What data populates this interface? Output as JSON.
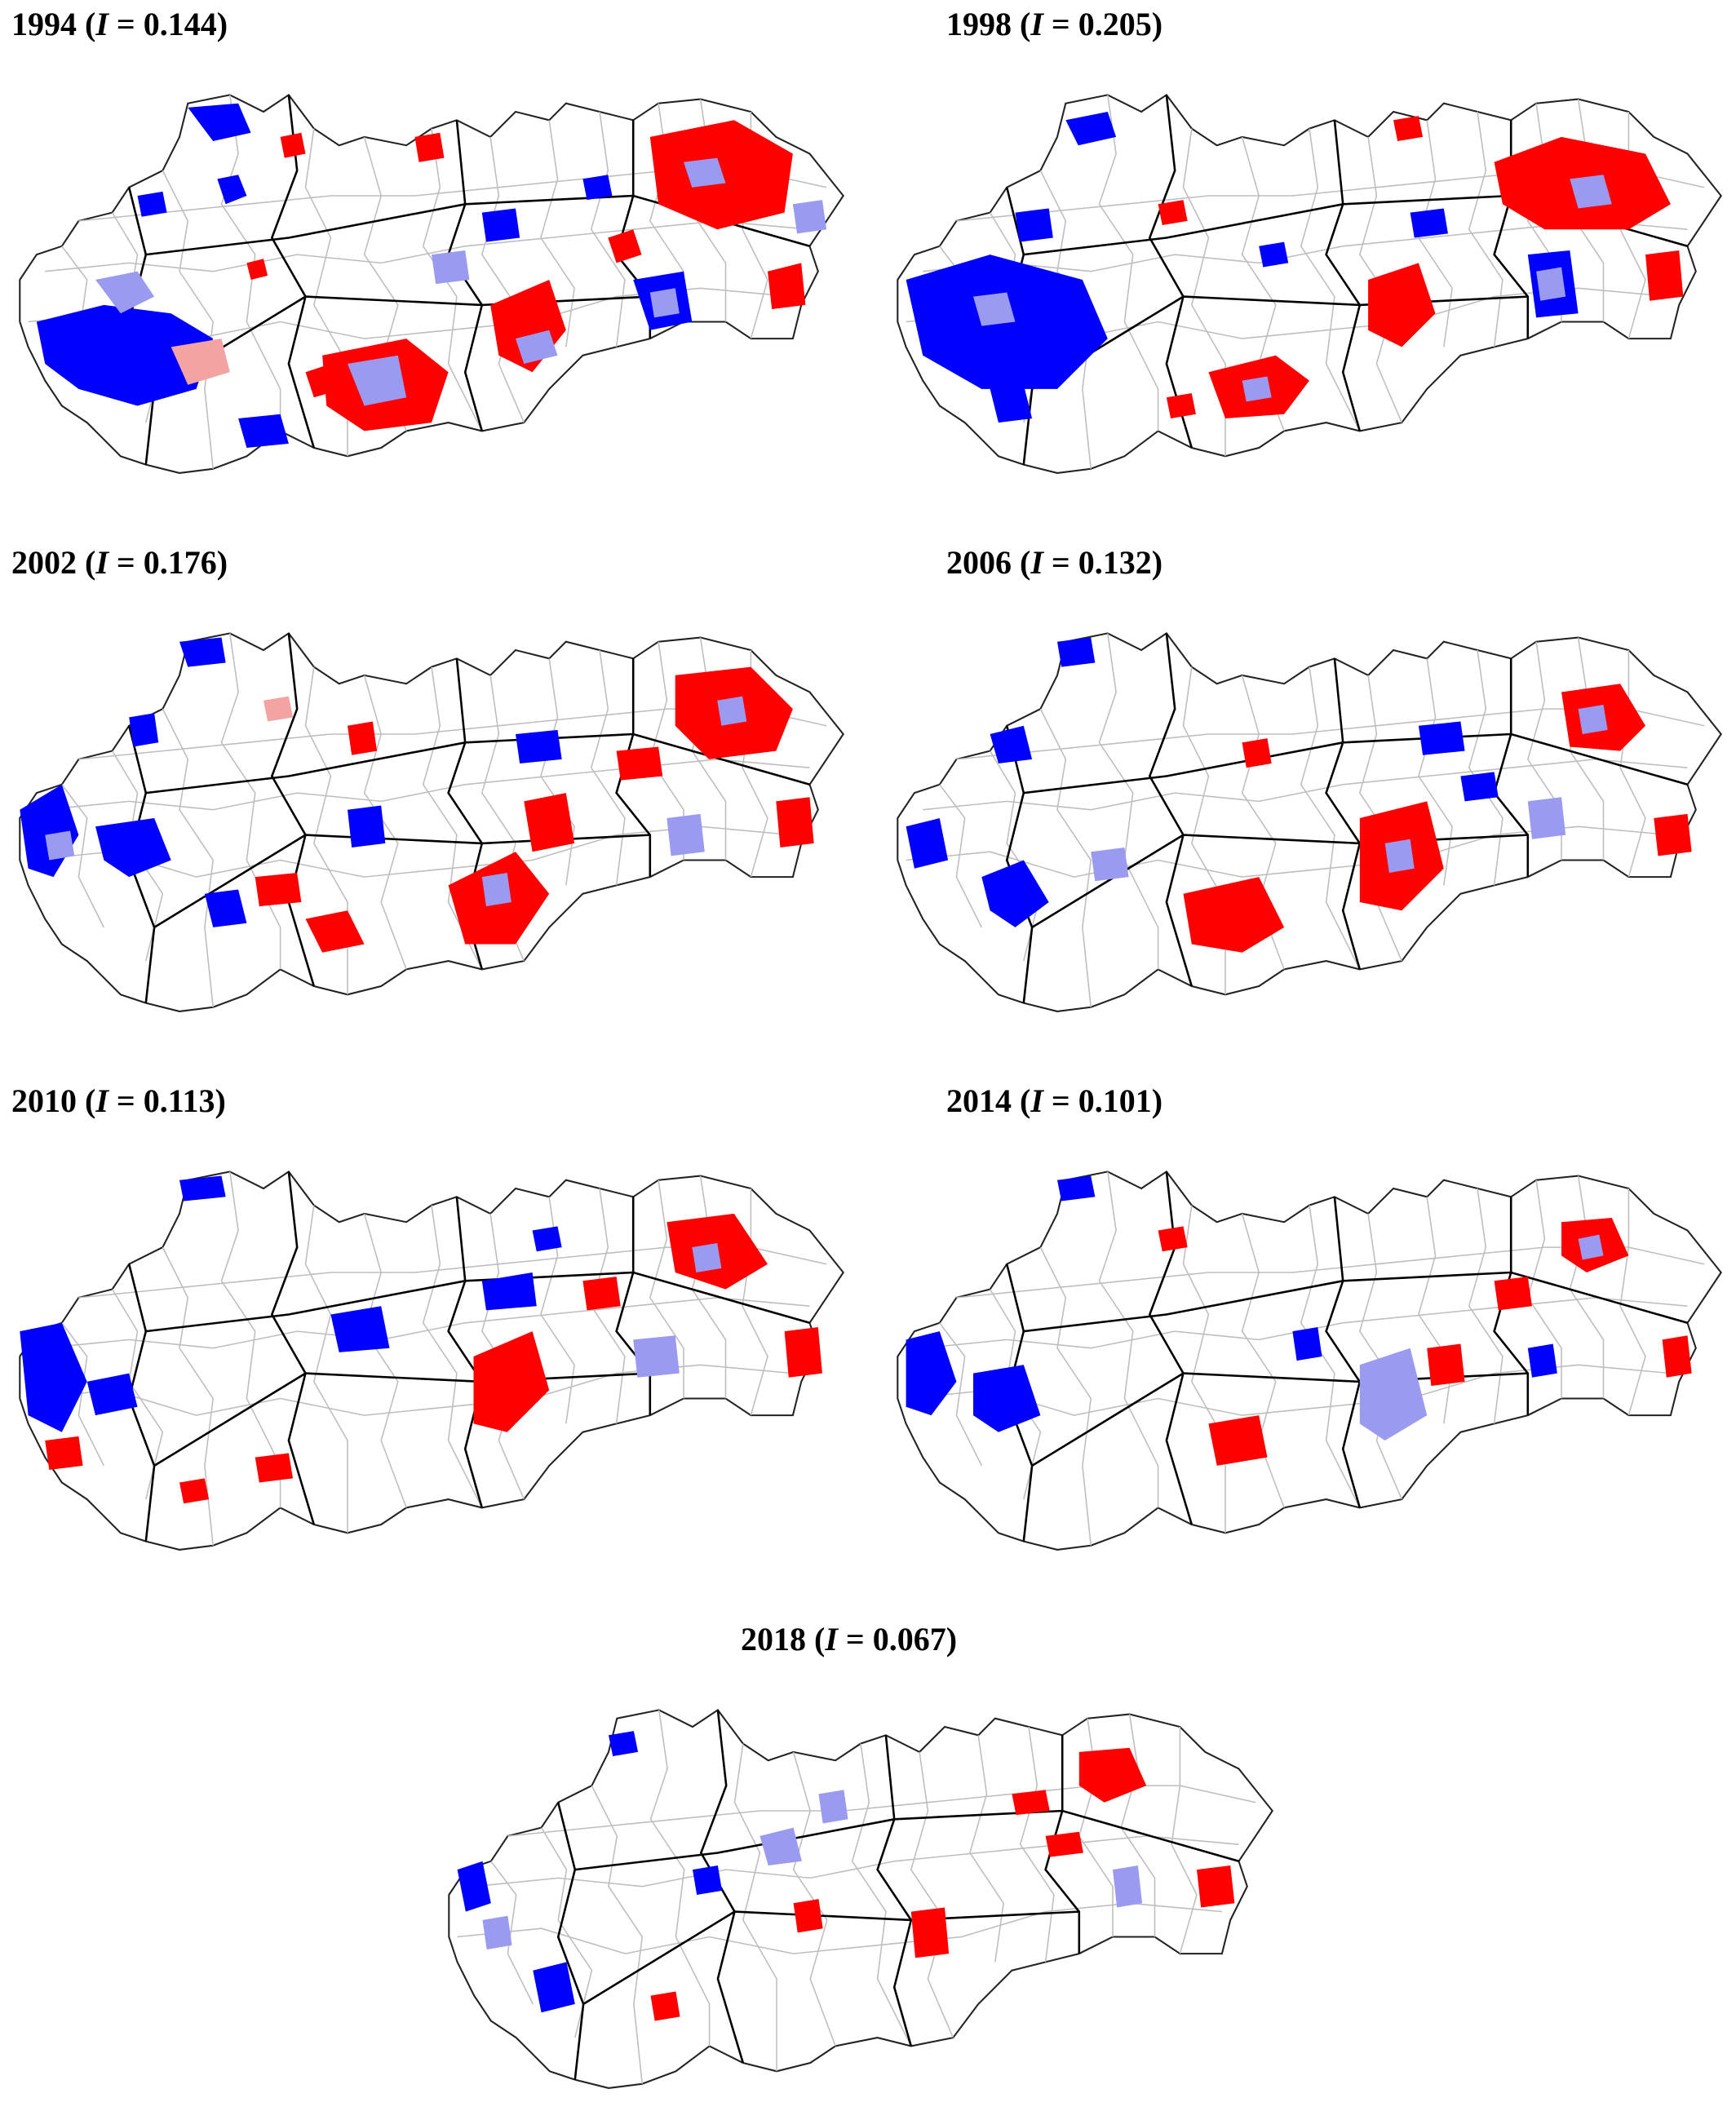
{
  "figure": {
    "panels": [
      {
        "year": "1994",
        "stat_symbol": "I",
        "stat_value": "0.144"
      },
      {
        "year": "1998",
        "stat_symbol": "I",
        "stat_value": "0.205"
      },
      {
        "year": "2002",
        "stat_symbol": "I",
        "stat_value": "0.176"
      },
      {
        "year": "2006",
        "stat_symbol": "I",
        "stat_value": "0.132"
      },
      {
        "year": "2010",
        "stat_symbol": "I",
        "stat_value": "0.113"
      },
      {
        "year": "2014",
        "stat_symbol": "I",
        "stat_value": "0.101"
      },
      {
        "year": "2018",
        "stat_symbol": "I",
        "stat_value": "0.067"
      }
    ],
    "colors": {
      "high_high": "#ff0000",
      "high_low": "#f4a3a3",
      "low_high": "#9a9af0",
      "low_low": "#0000ff",
      "district_boundary": "#bdbdbd",
      "region_boundary": "#000000"
    }
  }
}
